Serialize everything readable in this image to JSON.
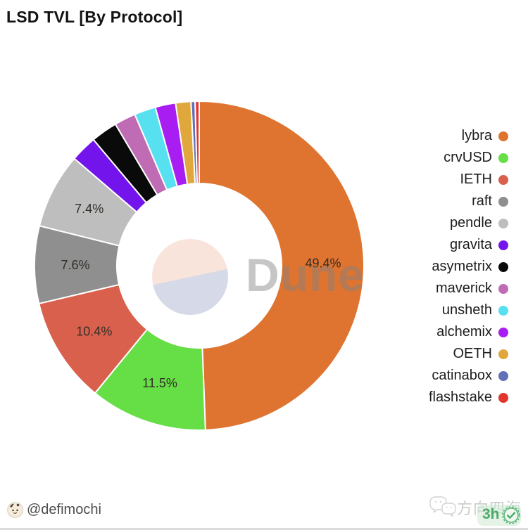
{
  "header": {
    "title": "LSD TVL [By Protocol]"
  },
  "watermark": {
    "brand": "Dune"
  },
  "chart_data": {
    "type": "pie",
    "donut": true,
    "title": "LSD TVL [By Protocol]",
    "unit": "%",
    "start_angle_deg": 0,
    "direction": "clockwise",
    "legend_position": "right",
    "items": [
      {
        "label": "lybra",
        "value": 49.4,
        "color": "#de7430",
        "pct_label": "49.4%"
      },
      {
        "label": "crvUSD",
        "value": 11.5,
        "color": "#66de45",
        "pct_label": "11.5%"
      },
      {
        "label": "IETH",
        "value": 10.4,
        "color": "#d9604c",
        "pct_label": "10.4%"
      },
      {
        "label": "raft",
        "value": 7.6,
        "color": "#8f8f8f",
        "pct_label": "7.6%"
      },
      {
        "label": "pendle",
        "value": 7.4,
        "color": "#bebebe",
        "pct_label": "7.4%"
      },
      {
        "label": "gravita",
        "value": 2.6,
        "color": "#7414ec",
        "pct_label": null
      },
      {
        "label": "asymetrix",
        "value": 2.6,
        "color": "#0a0a0a",
        "pct_label": null
      },
      {
        "label": "maverick",
        "value": 2.1,
        "color": "#bf6cb4",
        "pct_label": null
      },
      {
        "label": "unsheth",
        "value": 2.1,
        "color": "#57e1f0",
        "pct_label": null
      },
      {
        "label": "alchemix",
        "value": 2.0,
        "color": "#a81ef2",
        "pct_label": null
      },
      {
        "label": "OETH",
        "value": 1.5,
        "color": "#e0a83c",
        "pct_label": null
      },
      {
        "label": "catinabox",
        "value": 0.4,
        "color": "#6271b5",
        "pct_label": null
      },
      {
        "label": "flashstake",
        "value": 0.4,
        "color": "#e4342e",
        "pct_label": null
      }
    ],
    "center_logo_colors": {
      "top": "#f8e4da",
      "bottom": "#d6dae8"
    }
  },
  "footer": {
    "handle": "@defimochi",
    "watermark_text": "方向四海",
    "badge_text": "3h"
  }
}
